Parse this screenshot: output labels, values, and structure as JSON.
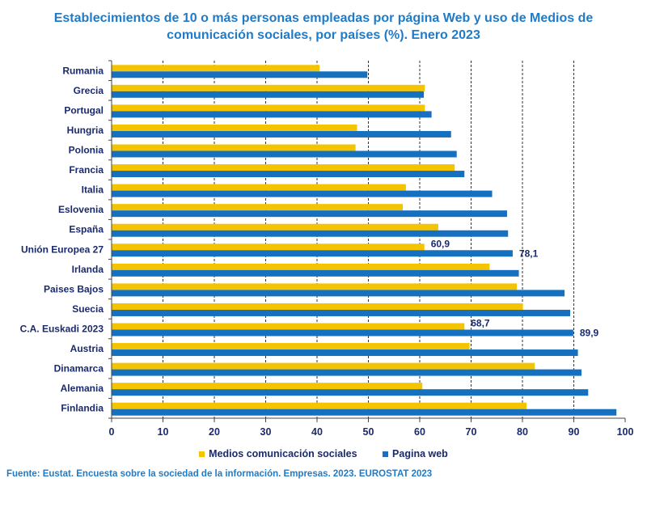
{
  "title_line1": "Establecimientos de 10 o más personas empleadas por página Web y uso de Medios de",
  "title_line2": "comunicación sociales, por países (%). Enero 2023",
  "source": "Fuente: Eustat. Encuesta sobre la sociedad de la información. Empresas. 2023. EUROSTAT 2023",
  "colors": {
    "social": "#f5c400",
    "web": "#1570c0",
    "text": "#1a2a6c"
  },
  "chart_data": {
    "type": "bar",
    "orientation": "horizontal",
    "categories": [
      "Rumania",
      "Grecia",
      "Portugal",
      "Hungria",
      "Polonia",
      "Francia",
      "Italia",
      "Eslovenia",
      "España",
      "Unión Europea 27",
      "Irlanda",
      "Paises Bajos",
      "Suecia",
      "C.A. Euskadi 2023",
      "Austria",
      "Dinamarca",
      "Alemania",
      "Finlandia"
    ],
    "series": [
      {
        "name": "Medios comunicación sociales",
        "color": "#f5c400",
        "values": [
          40.5,
          61.0,
          61.0,
          47.8,
          47.5,
          66.8,
          57.3,
          56.7,
          63.6,
          60.9,
          73.6,
          78.9,
          80.1,
          68.7,
          69.7,
          82.4,
          60.5,
          80.8
        ]
      },
      {
        "name": "Pagina web",
        "color": "#1570c0",
        "values": [
          49.8,
          60.8,
          62.3,
          66.1,
          67.2,
          68.7,
          74.1,
          77.0,
          77.2,
          78.1,
          79.3,
          88.2,
          89.3,
          89.9,
          90.8,
          91.5,
          92.8,
          98.3
        ]
      }
    ],
    "data_labels": [
      {
        "category": "Unión Europea 27",
        "series": 0,
        "text": "60,9"
      },
      {
        "category": "Unión Europea 27",
        "series": 1,
        "text": "78,1"
      },
      {
        "category": "C.A. Euskadi 2023",
        "series": 0,
        "text": "68,7"
      },
      {
        "category": "C.A. Euskadi 2023",
        "series": 1,
        "text": "89,9"
      }
    ],
    "xlim": [
      0,
      100
    ],
    "xticks": [
      0,
      10,
      20,
      30,
      40,
      50,
      60,
      70,
      80,
      90,
      100
    ],
    "gridlines": "vertical dashed",
    "legend_position": "bottom"
  }
}
